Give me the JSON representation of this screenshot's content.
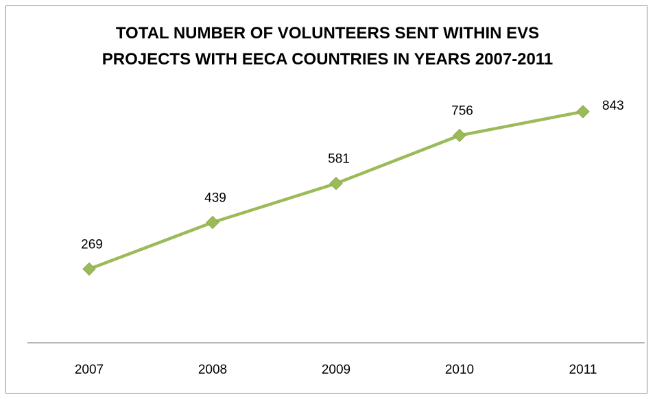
{
  "chart_data": {
    "type": "line",
    "title_lines": [
      "TOTAL NUMBER OF VOLUNTEERS SENT WITHIN EVS",
      "PROJECTS WITH EECA COUNTRIES IN YEARS 2007-2011"
    ],
    "categories": [
      "2007",
      "2008",
      "2009",
      "2010",
      "2011"
    ],
    "series": [
      {
        "values": [
          269,
          439,
          581,
          756,
          843
        ],
        "labels": [
          "269",
          "439",
          "581",
          "756",
          "843"
        ],
        "color": "#9bbb59",
        "marker": "diamond"
      }
    ],
    "xlabel": "",
    "ylabel": "",
    "ylim": [
      0,
      1000
    ],
    "grid": false,
    "legend": "none",
    "axis_color": "#8c8c8c"
  }
}
